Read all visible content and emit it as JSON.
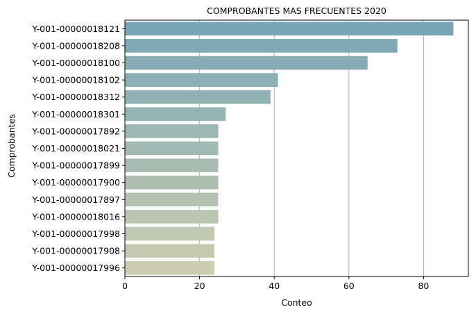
{
  "chart_data": {
    "type": "bar",
    "orientation": "horizontal",
    "title": "COMPROBANTES MAS FRECUENTES 2020",
    "xlabel": "Conteo",
    "ylabel": "Comprobantes",
    "xlim": [
      0,
      92
    ],
    "xticks": [
      0,
      20,
      40,
      60,
      80
    ],
    "grid": "vertical",
    "color_start": "#7aa6b6",
    "color_end": "#cccdb1",
    "categories": [
      "Y-001-00000018121",
      "Y-001-00000018208",
      "Y-001-00000018100",
      "Y-001-00000018102",
      "Y-001-00000018312",
      "Y-001-00000018301",
      "Y-001-00000017892",
      "Y-001-00000018021",
      "Y-001-00000017899",
      "Y-001-00000017900",
      "Y-001-00000017897",
      "Y-001-00000018016",
      "Y-001-00000017998",
      "Y-001-00000017908",
      "Y-001-00000017996"
    ],
    "values": [
      88,
      73,
      65,
      41,
      39,
      27,
      25,
      25,
      25,
      25,
      25,
      25,
      24,
      24,
      24
    ]
  }
}
